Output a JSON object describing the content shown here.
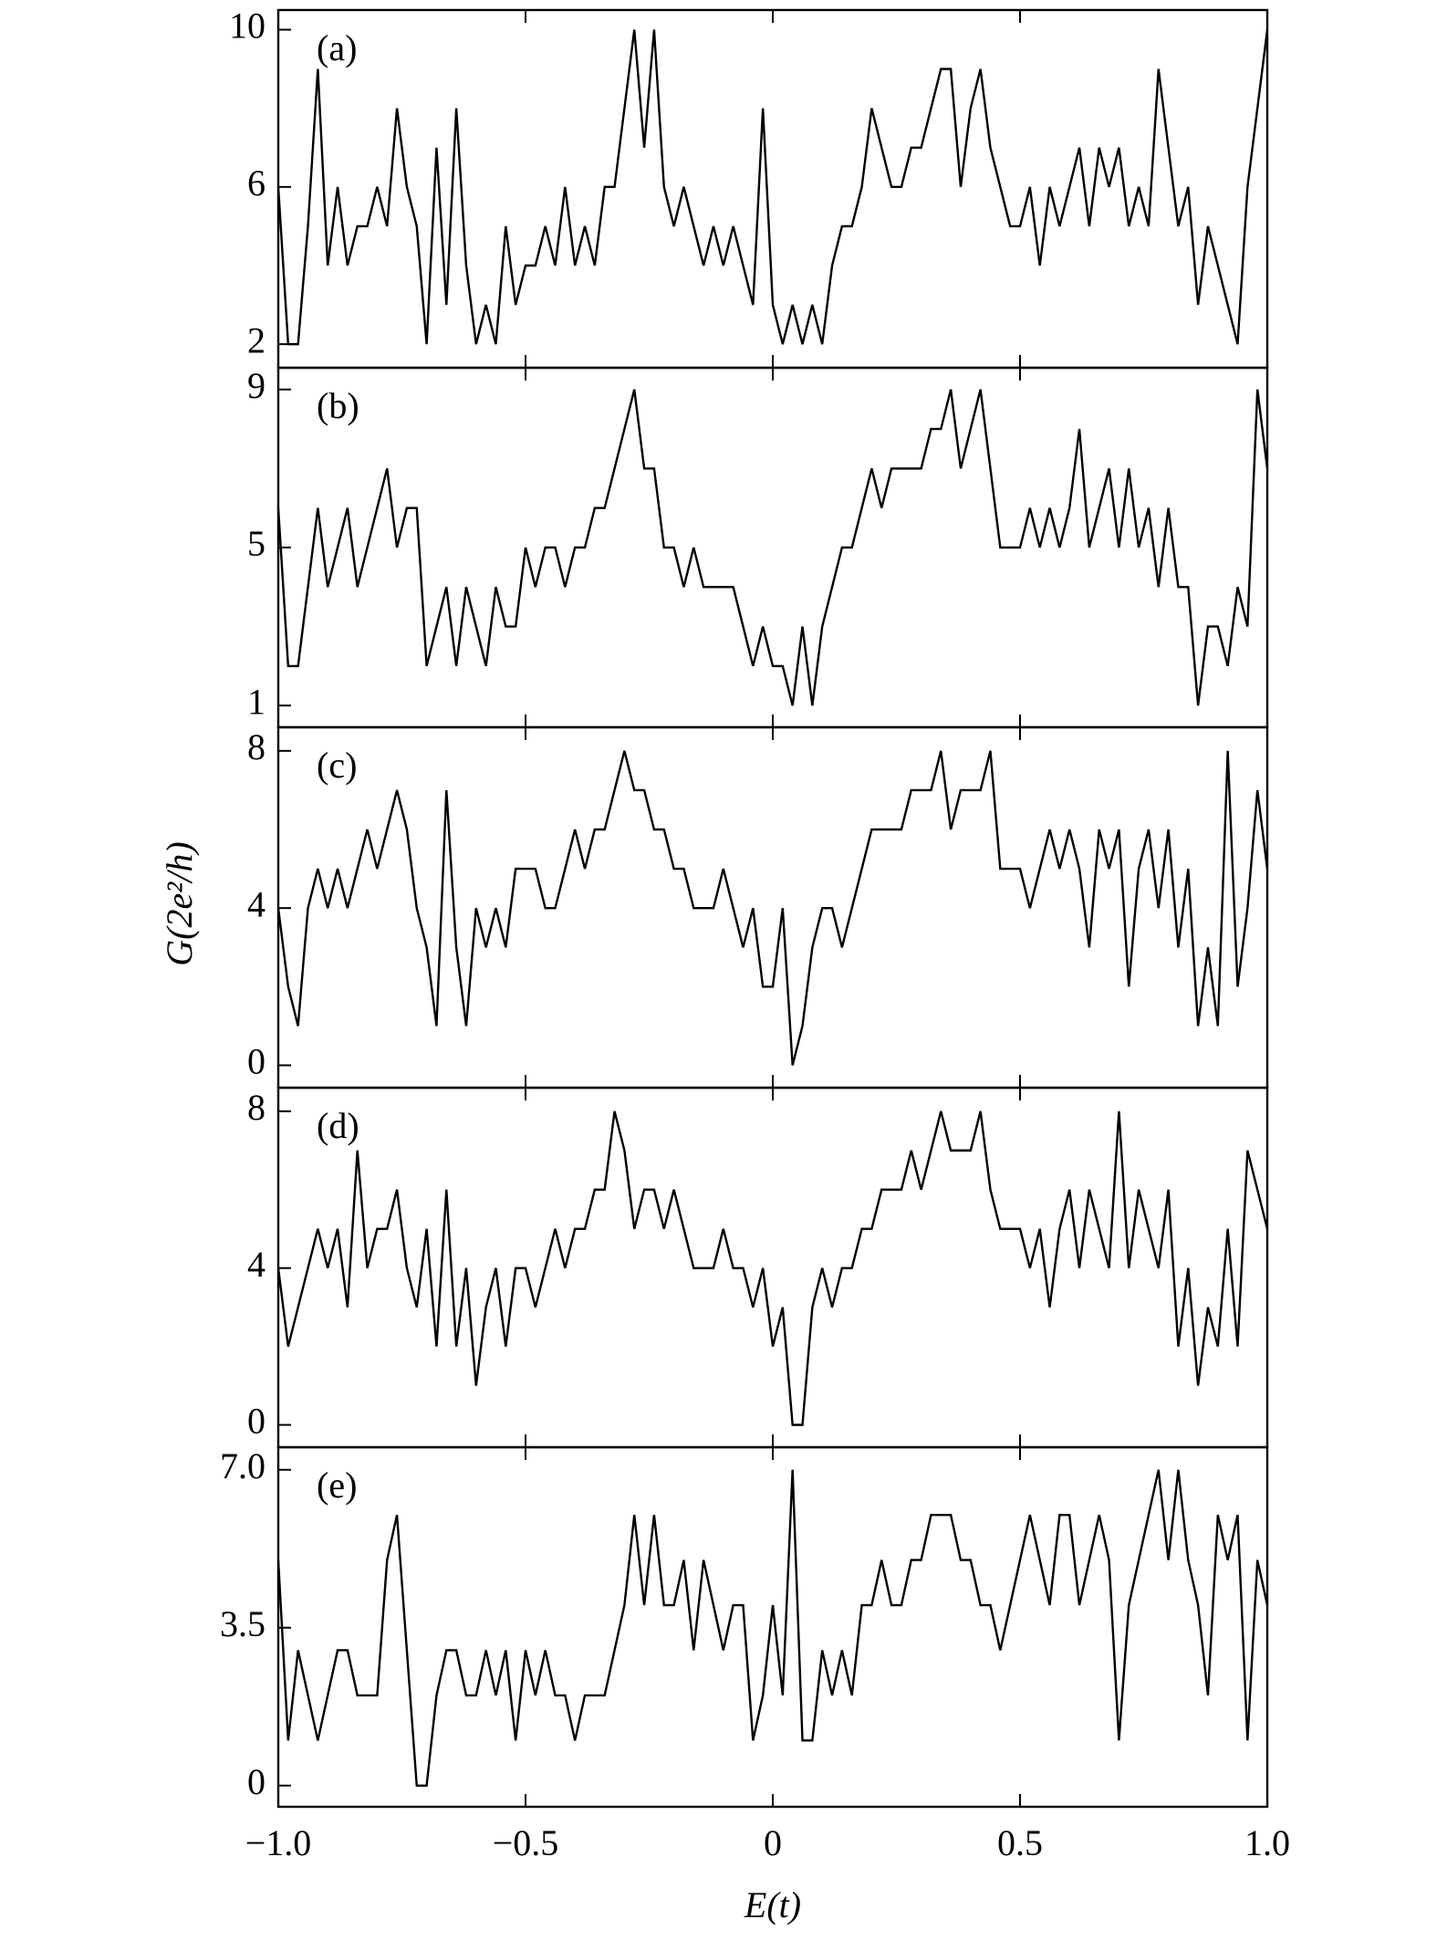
{
  "chart_data": [
    {
      "type": "line",
      "annotation": "(a)",
      "color": "#000000",
      "xlim": [
        -1,
        1
      ],
      "xticks": [
        {
          "value": -1,
          "label": "−1.0"
        },
        {
          "value": -0.5,
          "label": "−0.5"
        },
        0,
        0.5,
        {
          "value": 1,
          "label": "1.0"
        }
      ],
      "ylim": [
        1.4,
        10.5
      ],
      "yticks": [
        2,
        6,
        10
      ],
      "x": [
        -1,
        -0.98,
        -0.96,
        -0.94,
        -0.92,
        -0.9,
        -0.88,
        -0.86,
        -0.84,
        -0.82,
        -0.8,
        -0.78,
        -0.76,
        -0.74,
        -0.72,
        -0.7,
        -0.68,
        -0.66,
        -0.64,
        -0.62,
        -0.6,
        -0.58,
        -0.56,
        -0.54,
        -0.52,
        -0.5,
        -0.48,
        -0.46,
        -0.44,
        -0.42,
        -0.4,
        -0.38,
        -0.36,
        -0.34,
        -0.32,
        -0.3,
        -0.28,
        -0.26,
        -0.24,
        -0.22,
        -0.2,
        -0.18,
        -0.16,
        -0.14,
        -0.12,
        -0.1,
        -0.08,
        -0.06,
        -0.04,
        -0.02,
        0,
        0.02,
        0.04,
        0.06,
        0.08,
        0.1,
        0.12,
        0.14,
        0.16,
        0.18,
        0.2,
        0.22,
        0.24,
        0.26,
        0.28,
        0.3,
        0.32,
        0.34,
        0.36,
        0.38,
        0.4,
        0.42,
        0.44,
        0.46,
        0.48,
        0.5,
        0.52,
        0.54,
        0.56,
        0.58,
        0.6,
        0.62,
        0.64,
        0.66,
        0.68,
        0.7,
        0.72,
        0.74,
        0.76,
        0.78,
        0.8,
        0.82,
        0.84,
        0.86,
        0.88,
        0.9,
        0.92,
        0.94,
        0.96,
        0.98,
        1
      ],
      "values": [
        6,
        2,
        2,
        5,
        9,
        4,
        6,
        4,
        5,
        5,
        6,
        5,
        8,
        6,
        5,
        2,
        7,
        3,
        8,
        4,
        2,
        3,
        2,
        5,
        3,
        4,
        4,
        5,
        4,
        6,
        4,
        5,
        4,
        6,
        6,
        8,
        10,
        7,
        10,
        6,
        5,
        6,
        5,
        4,
        5,
        4,
        5,
        4,
        3,
        8,
        3,
        2,
        3,
        2,
        3,
        2,
        4,
        5,
        5,
        6,
        8,
        7,
        6,
        6,
        7,
        7,
        8,
        9,
        9,
        6,
        8,
        9,
        7,
        6,
        5,
        5,
        6,
        4,
        6,
        5,
        6,
        7,
        5,
        7,
        6,
        7,
        5,
        6,
        5,
        9,
        7,
        5,
        6,
        3,
        5,
        4,
        3,
        2,
        6,
        8,
        10
      ]
    },
    {
      "type": "line",
      "annotation": "(b)",
      "color": "#000000",
      "xlim": [
        -1,
        1
      ],
      "xticks": [
        {
          "value": -1,
          "label": "−1.0"
        },
        {
          "value": -0.5,
          "label": "−0.5"
        },
        0,
        0.5,
        {
          "value": 1,
          "label": "1.0"
        }
      ],
      "ylim": [
        0.45,
        9.55
      ],
      "yticks": [
        1,
        5,
        9
      ],
      "x": [
        -1,
        -0.98,
        -0.96,
        -0.94,
        -0.92,
        -0.9,
        -0.88,
        -0.86,
        -0.84,
        -0.82,
        -0.8,
        -0.78,
        -0.76,
        -0.74,
        -0.72,
        -0.7,
        -0.68,
        -0.66,
        -0.64,
        -0.62,
        -0.6,
        -0.58,
        -0.56,
        -0.54,
        -0.52,
        -0.5,
        -0.48,
        -0.46,
        -0.44,
        -0.42,
        -0.4,
        -0.38,
        -0.36,
        -0.34,
        -0.32,
        -0.3,
        -0.28,
        -0.26,
        -0.24,
        -0.22,
        -0.2,
        -0.18,
        -0.16,
        -0.14,
        -0.12,
        -0.1,
        -0.08,
        -0.06,
        -0.04,
        -0.02,
        0,
        0.02,
        0.04,
        0.06,
        0.08,
        0.1,
        0.12,
        0.14,
        0.16,
        0.18,
        0.2,
        0.22,
        0.24,
        0.26,
        0.28,
        0.3,
        0.32,
        0.34,
        0.36,
        0.38,
        0.4,
        0.42,
        0.44,
        0.46,
        0.48,
        0.5,
        0.52,
        0.54,
        0.56,
        0.58,
        0.6,
        0.62,
        0.64,
        0.66,
        0.68,
        0.7,
        0.72,
        0.74,
        0.76,
        0.78,
        0.8,
        0.82,
        0.84,
        0.86,
        0.88,
        0.9,
        0.92,
        0.94,
        0.96,
        0.98,
        1
      ],
      "values": [
        6,
        2,
        2,
        4,
        6,
        4,
        5,
        6,
        4,
        5,
        6,
        7,
        5,
        6,
        6,
        2,
        3,
        4,
        2,
        4,
        3,
        2,
        4,
        3,
        3,
        5,
        4,
        5,
        5,
        4,
        5,
        5,
        6,
        6,
        7,
        8,
        9,
        7,
        7,
        5,
        5,
        4,
        5,
        4,
        4,
        4,
        4,
        3,
        2,
        3,
        2,
        2,
        1,
        3,
        1,
        3,
        4,
        5,
        5,
        6,
        7,
        6,
        7,
        7,
        7,
        7,
        8,
        8,
        9,
        7,
        8,
        9,
        7,
        5,
        5,
        5,
        6,
        5,
        6,
        5,
        6,
        8,
        5,
        6,
        7,
        5,
        7,
        5,
        6,
        4,
        6,
        4,
        4,
        1,
        3,
        3,
        2,
        4,
        3,
        9,
        7
      ]
    },
    {
      "type": "line",
      "annotation": "(c)",
      "color": "#000000",
      "ylabel": "G(2e²/h)",
      "xlim": [
        -1,
        1
      ],
      "xticks": [
        {
          "value": -1,
          "label": "−1.0"
        },
        {
          "value": -0.5,
          "label": "−0.5"
        },
        0,
        0.5,
        {
          "value": 1,
          "label": "1.0"
        }
      ],
      "ylim": [
        -0.57,
        8.6
      ],
      "yticks": [
        0,
        4,
        8
      ],
      "x": [
        -1,
        -0.98,
        -0.96,
        -0.94,
        -0.92,
        -0.9,
        -0.88,
        -0.86,
        -0.84,
        -0.82,
        -0.8,
        -0.78,
        -0.76,
        -0.74,
        -0.72,
        -0.7,
        -0.68,
        -0.66,
        -0.64,
        -0.62,
        -0.6,
        -0.58,
        -0.56,
        -0.54,
        -0.52,
        -0.5,
        -0.48,
        -0.46,
        -0.44,
        -0.42,
        -0.4,
        -0.38,
        -0.36,
        -0.34,
        -0.32,
        -0.3,
        -0.28,
        -0.26,
        -0.24,
        -0.22,
        -0.2,
        -0.18,
        -0.16,
        -0.14,
        -0.12,
        -0.1,
        -0.08,
        -0.06,
        -0.04,
        -0.02,
        0,
        0.02,
        0.04,
        0.06,
        0.08,
        0.1,
        0.12,
        0.14,
        0.16,
        0.18,
        0.2,
        0.22,
        0.24,
        0.26,
        0.28,
        0.3,
        0.32,
        0.34,
        0.36,
        0.38,
        0.4,
        0.42,
        0.44,
        0.46,
        0.48,
        0.5,
        0.52,
        0.54,
        0.56,
        0.58,
        0.6,
        0.62,
        0.64,
        0.66,
        0.68,
        0.7,
        0.72,
        0.74,
        0.76,
        0.78,
        0.8,
        0.82,
        0.84,
        0.86,
        0.88,
        0.9,
        0.92,
        0.94,
        0.96,
        0.98,
        1
      ],
      "values": [
        4,
        2,
        1,
        4,
        5,
        4,
        5,
        4,
        5,
        6,
        5,
        6,
        7,
        6,
        4,
        3,
        1,
        7,
        3,
        1,
        4,
        3,
        4,
        3,
        5,
        5,
        5,
        4,
        4,
        5,
        6,
        5,
        6,
        6,
        7,
        8,
        7,
        7,
        6,
        6,
        5,
        5,
        4,
        4,
        4,
        5,
        4,
        3,
        4,
        2,
        2,
        4,
        0,
        1,
        3,
        4,
        4,
        3,
        4,
        5,
        6,
        6,
        6,
        6,
        7,
        7,
        7,
        8,
        6,
        7,
        7,
        7,
        8,
        5,
        5,
        5,
        4,
        5,
        6,
        5,
        6,
        5,
        3,
        6,
        5,
        6,
        2,
        5,
        6,
        4,
        6,
        3,
        5,
        1,
        3,
        1,
        8,
        2,
        4,
        7,
        5
      ]
    },
    {
      "type": "line",
      "annotation": "(d)",
      "color": "#000000",
      "xlim": [
        -1,
        1
      ],
      "xticks": [
        {
          "value": -1,
          "label": "−1.0"
        },
        {
          "value": -0.5,
          "label": "−0.5"
        },
        0,
        0.5,
        {
          "value": 1,
          "label": "1.0"
        }
      ],
      "ylim": [
        -0.57,
        8.6
      ],
      "yticks": [
        0,
        4,
        8
      ],
      "x": [
        -1,
        -0.98,
        -0.96,
        -0.94,
        -0.92,
        -0.9,
        -0.88,
        -0.86,
        -0.84,
        -0.82,
        -0.8,
        -0.78,
        -0.76,
        -0.74,
        -0.72,
        -0.7,
        -0.68,
        -0.66,
        -0.64,
        -0.62,
        -0.6,
        -0.58,
        -0.56,
        -0.54,
        -0.52,
        -0.5,
        -0.48,
        -0.46,
        -0.44,
        -0.42,
        -0.4,
        -0.38,
        -0.36,
        -0.34,
        -0.32,
        -0.3,
        -0.28,
        -0.26,
        -0.24,
        -0.22,
        -0.2,
        -0.18,
        -0.16,
        -0.14,
        -0.12,
        -0.1,
        -0.08,
        -0.06,
        -0.04,
        -0.02,
        0,
        0.02,
        0.04,
        0.06,
        0.08,
        0.1,
        0.12,
        0.14,
        0.16,
        0.18,
        0.2,
        0.22,
        0.24,
        0.26,
        0.28,
        0.3,
        0.32,
        0.34,
        0.36,
        0.38,
        0.4,
        0.42,
        0.44,
        0.46,
        0.48,
        0.5,
        0.52,
        0.54,
        0.56,
        0.58,
        0.6,
        0.62,
        0.64,
        0.66,
        0.68,
        0.7,
        0.72,
        0.74,
        0.76,
        0.78,
        0.8,
        0.82,
        0.84,
        0.86,
        0.88,
        0.9,
        0.92,
        0.94,
        0.96,
        0.98,
        1
      ],
      "values": [
        4,
        2,
        3,
        4,
        5,
        4,
        5,
        3,
        7,
        4,
        5,
        5,
        6,
        4,
        3,
        5,
        2,
        6,
        2,
        4,
        1,
        3,
        4,
        2,
        4,
        4,
        3,
        4,
        5,
        4,
        5,
        5,
        6,
        6,
        8,
        7,
        5,
        6,
        6,
        5,
        6,
        5,
        4,
        4,
        4,
        5,
        4,
        4,
        3,
        4,
        2,
        3,
        0,
        0,
        3,
        4,
        3,
        4,
        4,
        5,
        5,
        6,
        6,
        6,
        7,
        6,
        7,
        8,
        7,
        7,
        7,
        8,
        6,
        5,
        5,
        5,
        4,
        5,
        3,
        5,
        6,
        4,
        6,
        5,
        4,
        8,
        4,
        6,
        5,
        4,
        6,
        2,
        4,
        1,
        3,
        2,
        5,
        2,
        7,
        6,
        5
      ]
    },
    {
      "type": "line",
      "annotation": "(e)",
      "color": "#000000",
      "xlabel": "E(t)",
      "xlim": [
        -1,
        1
      ],
      "xticks": [
        {
          "value": -1,
          "label": "−1.0"
        },
        {
          "value": -0.5,
          "label": "−0.5"
        },
        0,
        0.5,
        {
          "value": 1,
          "label": "1.0"
        }
      ],
      "ylim": [
        -0.47,
        7.5
      ],
      "yticks": [
        0,
        3.5,
        {
          "value": 7,
          "label": "7.0"
        }
      ],
      "x": [
        -1,
        -0.98,
        -0.96,
        -0.94,
        -0.92,
        -0.9,
        -0.88,
        -0.86,
        -0.84,
        -0.82,
        -0.8,
        -0.78,
        -0.76,
        -0.74,
        -0.72,
        -0.7,
        -0.68,
        -0.66,
        -0.64,
        -0.62,
        -0.6,
        -0.58,
        -0.56,
        -0.54,
        -0.52,
        -0.5,
        -0.48,
        -0.46,
        -0.44,
        -0.42,
        -0.4,
        -0.38,
        -0.36,
        -0.34,
        -0.32,
        -0.3,
        -0.28,
        -0.26,
        -0.24,
        -0.22,
        -0.2,
        -0.18,
        -0.16,
        -0.14,
        -0.12,
        -0.1,
        -0.08,
        -0.06,
        -0.04,
        -0.02,
        0,
        0.02,
        0.04,
        0.06,
        0.08,
        0.1,
        0.12,
        0.14,
        0.16,
        0.18,
        0.2,
        0.22,
        0.24,
        0.26,
        0.28,
        0.3,
        0.32,
        0.34,
        0.36,
        0.38,
        0.4,
        0.42,
        0.44,
        0.46,
        0.48,
        0.5,
        0.52,
        0.54,
        0.56,
        0.58,
        0.6,
        0.62,
        0.64,
        0.66,
        0.68,
        0.7,
        0.72,
        0.74,
        0.76,
        0.78,
        0.8,
        0.82,
        0.84,
        0.86,
        0.88,
        0.9,
        0.92,
        0.94,
        0.96,
        0.98,
        1
      ],
      "values": [
        5,
        1,
        3,
        2,
        1,
        2,
        3,
        3,
        2,
        2,
        2,
        5,
        6,
        3,
        0,
        0,
        2,
        3,
        3,
        2,
        2,
        3,
        2,
        3,
        1,
        3,
        2,
        3,
        2,
        2,
        1,
        2,
        2,
        2,
        3,
        4,
        6,
        4,
        6,
        4,
        4,
        5,
        3,
        5,
        4,
        3,
        4,
        4,
        1,
        2,
        4,
        2,
        7,
        1,
        1,
        3,
        2,
        3,
        2,
        4,
        4,
        5,
        4,
        4,
        5,
        5,
        6,
        6,
        6,
        5,
        5,
        4,
        4,
        3,
        4,
        5,
        6,
        5,
        4,
        6,
        6,
        4,
        5,
        6,
        5,
        1,
        4,
        5,
        6,
        7,
        5,
        7,
        5,
        4,
        2,
        6,
        5,
        6,
        1,
        5,
        4
      ]
    }
  ]
}
